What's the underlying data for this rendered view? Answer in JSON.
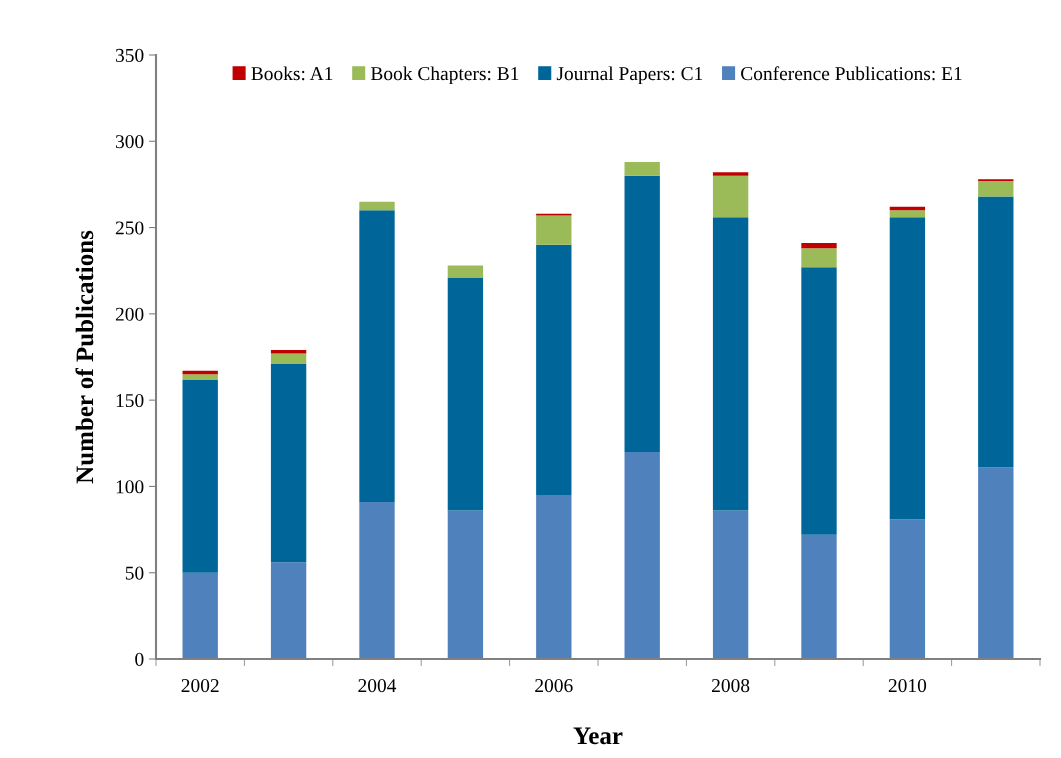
{
  "chart_data": {
    "type": "bar",
    "stacked": true,
    "xlabel": "Year",
    "ylabel": "Number of Publications",
    "categories": [
      "2002",
      null,
      "2004",
      null,
      "2006",
      null,
      "2008",
      null,
      "2010",
      null
    ],
    "series": [
      {
        "name": "Conference Publications: E1",
        "color": "#4f81bd",
        "values": [
          50,
          56,
          91,
          86,
          95,
          120,
          86,
          72,
          81,
          111
        ]
      },
      {
        "name": "Journal Papers: C1",
        "color": "#006699",
        "values": [
          112,
          115,
          169,
          135,
          145,
          160,
          170,
          155,
          175,
          157
        ]
      },
      {
        "name": "Book Chapters: B1",
        "color": "#9bbb59",
        "values": [
          3,
          6,
          5,
          7,
          17,
          8,
          24,
          11,
          4,
          9
        ]
      },
      {
        "name": "Books: A1",
        "color": "#c00000",
        "values": [
          2,
          2,
          0,
          0,
          1,
          0,
          2,
          3,
          2,
          1
        ]
      }
    ],
    "ylim": [
      0,
      350
    ],
    "yticks": [
      0,
      50,
      100,
      150,
      200,
      250,
      300,
      350
    ],
    "grid": false,
    "legend": "top"
  }
}
